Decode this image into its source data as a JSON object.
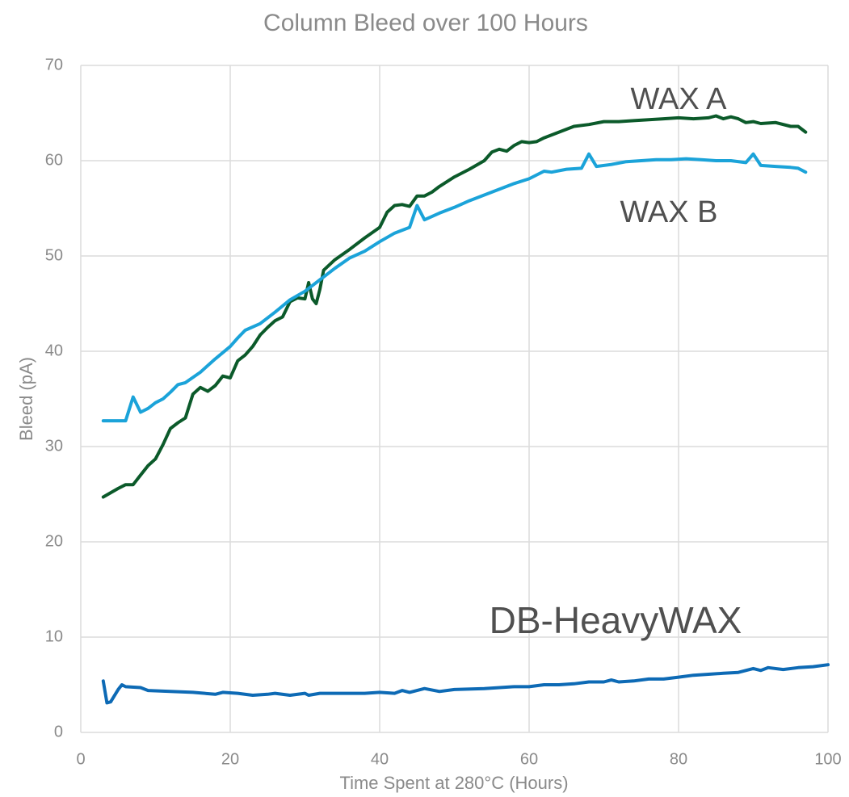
{
  "chart_data": {
    "type": "line",
    "title": "Column Bleed over 100 Hours",
    "x_label": "Time Spent at 280°C (Hours)",
    "y_label": "Bleed (pA)",
    "xlim": [
      0,
      100
    ],
    "xticks": [
      0,
      20,
      40,
      60,
      80,
      100
    ],
    "ylim": [
      0,
      70
    ],
    "yticks": [
      0,
      10,
      20,
      30,
      40,
      50,
      60,
      70
    ],
    "grid": true,
    "series": [
      {
        "name": "WAX A",
        "color": "#0b5a2a",
        "x": [
          3,
          5,
          6,
          7,
          8,
          9,
          10,
          11,
          12,
          13,
          14,
          15,
          16,
          17,
          18,
          19,
          20,
          21,
          22,
          23,
          24,
          25,
          26,
          27,
          28,
          29,
          30,
          30.5,
          31,
          31.5,
          32,
          32.5,
          34,
          36,
          38,
          40,
          41,
          42,
          43,
          44,
          45,
          46,
          47,
          48,
          50,
          52,
          54,
          55,
          56,
          57,
          58,
          59,
          60,
          61,
          62,
          64,
          66,
          68,
          70,
          72,
          74,
          76,
          78,
          80,
          82,
          84,
          85,
          86,
          87,
          88,
          89,
          90,
          91,
          93,
          95,
          96,
          97
        ],
        "values": [
          24.7,
          25.6,
          26,
          26,
          27,
          28,
          28.7,
          30.2,
          31.9,
          32.5,
          33,
          35.5,
          36.2,
          35.8,
          36.4,
          37.4,
          37.2,
          39,
          39.6,
          40.5,
          41.7,
          42.5,
          43.2,
          43.6,
          45.2,
          45.6,
          45.5,
          47.2,
          45.5,
          45,
          46.5,
          48.5,
          49.6,
          50.7,
          51.9,
          53,
          54.6,
          55.3,
          55.4,
          55.2,
          56.3,
          56.3,
          56.7,
          57.3,
          58.3,
          59.1,
          60,
          60.9,
          61.2,
          61,
          61.6,
          62,
          61.9,
          62,
          62.4,
          63,
          63.6,
          63.8,
          64.1,
          64.1,
          64.2,
          64.3,
          64.4,
          64.5,
          64.4,
          64.5,
          64.7,
          64.4,
          64.6,
          64.4,
          64,
          64.1,
          63.9,
          64,
          63.6,
          63.6,
          63
        ]
      },
      {
        "name": "WAX B",
        "color": "#1ba3d9",
        "x": [
          3,
          5,
          6,
          7,
          8,
          9,
          10,
          11,
          12,
          13,
          14,
          16,
          18,
          20,
          21,
          22,
          24,
          26,
          28,
          30,
          32,
          34,
          36,
          38,
          40,
          42,
          44,
          45,
          46,
          48,
          50,
          52,
          54,
          56,
          58,
          60,
          62,
          63,
          65,
          67,
          68,
          69,
          71,
          73,
          75,
          77,
          79,
          81,
          83,
          85,
          87,
          89,
          90,
          91,
          93,
          95,
          96,
          97
        ],
        "values": [
          32.7,
          32.7,
          32.7,
          35.2,
          33.6,
          34,
          34.6,
          35,
          35.7,
          36.5,
          36.7,
          37.8,
          39.2,
          40.5,
          41.4,
          42.2,
          42.9,
          44.1,
          45.4,
          46.3,
          47.5,
          48.7,
          49.8,
          50.5,
          51.5,
          52.4,
          53,
          55.3,
          53.8,
          54.5,
          55.1,
          55.8,
          56.4,
          57,
          57.6,
          58.1,
          58.9,
          58.8,
          59.1,
          59.2,
          60.7,
          59.4,
          59.6,
          59.9,
          60,
          60.1,
          60.1,
          60.2,
          60.1,
          60,
          60,
          59.8,
          60.7,
          59.5,
          59.4,
          59.3,
          59.2,
          58.8
        ]
      },
      {
        "name": "DB-HeavyWAX",
        "color": "#0d6ab5",
        "x": [
          3,
          3.5,
          4,
          5,
          5.5,
          6,
          8,
          9,
          12,
          15,
          18,
          19,
          21,
          23,
          25,
          26,
          28,
          30,
          30.5,
          32,
          36,
          38,
          40,
          42,
          43,
          44,
          46,
          48,
          50,
          54,
          58,
          60,
          62,
          64,
          66,
          68,
          70,
          71,
          72,
          74,
          76,
          78,
          80,
          82,
          84,
          86,
          88,
          90,
          91,
          92,
          94,
          96,
          98,
          100
        ],
        "values": [
          5.4,
          3.1,
          3.2,
          4.5,
          5,
          4.8,
          4.7,
          4.4,
          4.3,
          4.2,
          4,
          4.2,
          4.1,
          3.9,
          4,
          4.1,
          3.9,
          4.1,
          3.9,
          4.1,
          4.1,
          4.1,
          4.2,
          4.1,
          4.4,
          4.2,
          4.6,
          4.3,
          4.5,
          4.6,
          4.8,
          4.8,
          5,
          5,
          5.1,
          5.3,
          5.3,
          5.5,
          5.3,
          5.4,
          5.6,
          5.6,
          5.8,
          6,
          6.1,
          6.2,
          6.3,
          6.7,
          6.5,
          6.8,
          6.6,
          6.8,
          6.9,
          7.1
        ]
      }
    ]
  }
}
